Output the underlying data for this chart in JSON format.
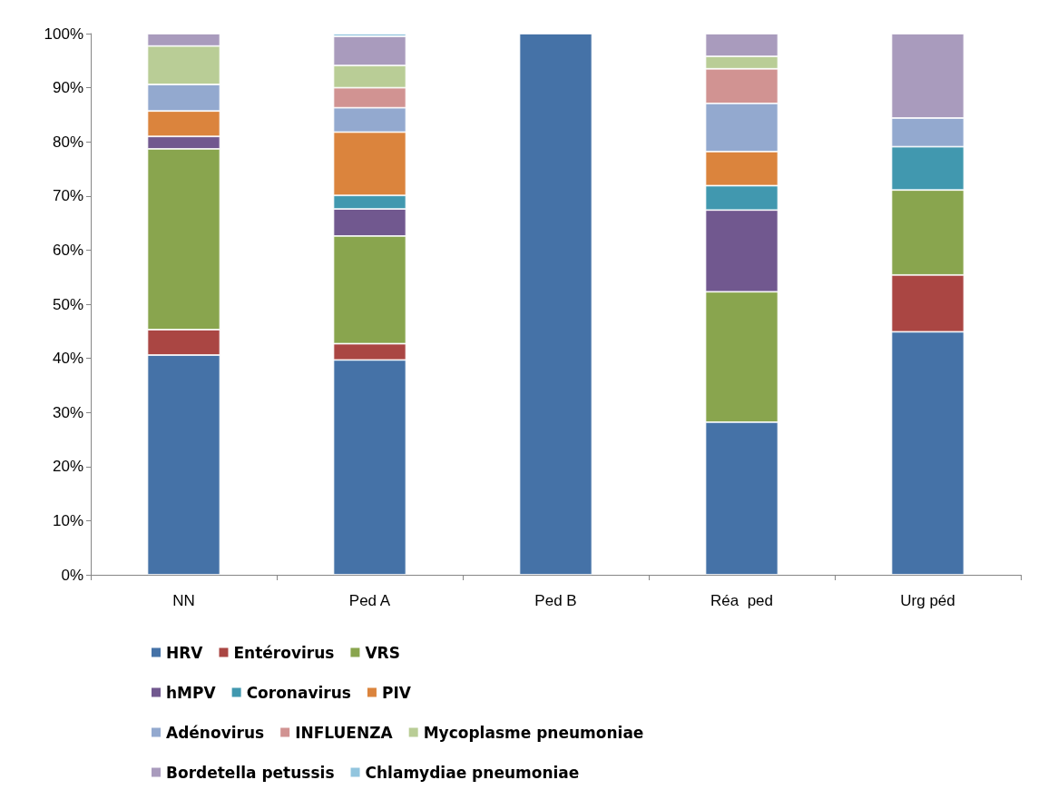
{
  "chart_data": {
    "type": "bar",
    "stacked": true,
    "categories": [
      "NN",
      "Ped A",
      "Ped B",
      "Réa  ped",
      "Urg péd"
    ],
    "series": [
      {
        "name": "HRV",
        "color": "#4572a7",
        "values": [
          40.6,
          39.7,
          100,
          28.2,
          44.9
        ]
      },
      {
        "name": "Entérovirus",
        "color": "#aa4643",
        "values": [
          4.7,
          3.0,
          null,
          null,
          10.5
        ]
      },
      {
        "name": "VRS",
        "color": "#89a54e",
        "values": [
          33.4,
          19.9,
          null,
          24.1,
          15.7
        ]
      },
      {
        "name": "hMPV",
        "color": "#71588f",
        "values": [
          2.3,
          5.0,
          null,
          15.1,
          null
        ]
      },
      {
        "name": "Coronavirus",
        "color": "#4198af",
        "values": [
          null,
          2.5,
          null,
          4.5,
          8.0
        ]
      },
      {
        "name": "PIV",
        "color": "#db843d",
        "values": [
          4.7,
          11.7,
          null,
          6.3,
          null
        ]
      },
      {
        "name": "Adénovirus",
        "color": "#93a9cf",
        "values": [
          4.9,
          4.5,
          null,
          8.9,
          5.3
        ]
      },
      {
        "name": "INFLUENZA",
        "color": "#d19392",
        "values": [
          null,
          3.7,
          null,
          6.4,
          null
        ]
      },
      {
        "name": "Mycoplasme pneumoniae",
        "color": "#b9cd96",
        "values": [
          7.1,
          4.1,
          null,
          2.3,
          null
        ]
      },
      {
        "name": "Bordetella petussis",
        "color": "#a99bbd",
        "values": [
          2.3,
          5.4,
          null,
          4.2,
          15.6
        ]
      },
      {
        "name": "Chlamydiae pneumoniae",
        "color": "#92c5de",
        "values": [
          null,
          0.5,
          null,
          null,
          null
        ]
      }
    ],
    "ylim": [
      0,
      100
    ],
    "yticks": [
      {
        "value": 0,
        "label": "0%"
      },
      {
        "value": 10,
        "label": "10%"
      },
      {
        "value": 20,
        "label": "20%"
      },
      {
        "value": 30,
        "label": "30%"
      },
      {
        "value": 40,
        "label": "40%"
      },
      {
        "value": 50,
        "label": "50%"
      },
      {
        "value": 60,
        "label": "60%"
      },
      {
        "value": 70,
        "label": "70%"
      },
      {
        "value": 80,
        "label": "80%"
      },
      {
        "value": 90,
        "label": "90%"
      },
      {
        "value": 100,
        "label": "100%"
      }
    ],
    "grid": false,
    "legend": "bottom"
  }
}
